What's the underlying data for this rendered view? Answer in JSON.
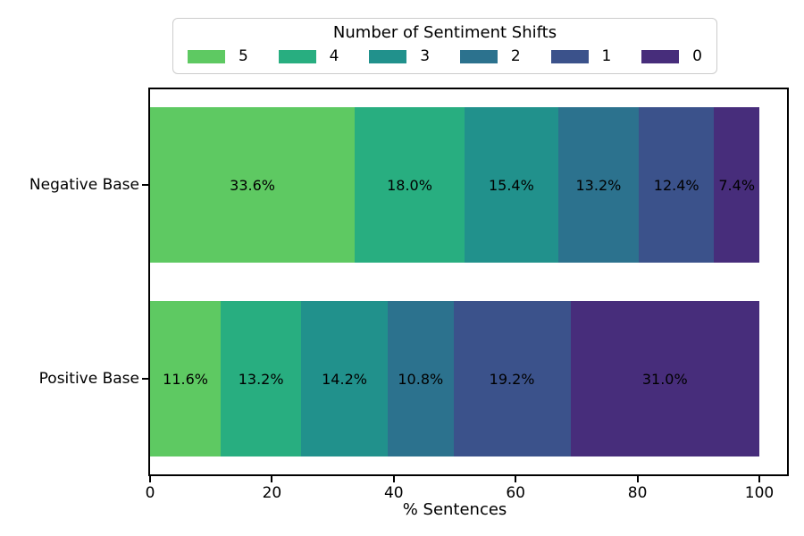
{
  "chart_data": {
    "type": "bar",
    "orientation": "horizontal",
    "stacked": true,
    "xlabel": "% Sentences",
    "ylabel": "",
    "xlim": [
      0,
      105
    ],
    "xticks": [
      "0",
      "20",
      "40",
      "60",
      "80",
      "100"
    ],
    "xtick_values": [
      0,
      20,
      40,
      60,
      80,
      100
    ],
    "categories": [
      "Negative Base",
      "Positive Base"
    ],
    "grid": false,
    "legend": {
      "title": "Number of Sentiment Shifts",
      "position": "top-center",
      "entries": [
        {
          "label": "5",
          "color": "#5ec962"
        },
        {
          "label": "4",
          "color": "#28ae80"
        },
        {
          "label": "3",
          "color": "#21918c"
        },
        {
          "label": "2",
          "color": "#2c728e"
        },
        {
          "label": "1",
          "color": "#3b528b"
        },
        {
          "label": "0",
          "color": "#472d7b"
        }
      ]
    },
    "series": [
      {
        "name": "5",
        "color": "#5ec962",
        "values": [
          33.6,
          11.6
        ]
      },
      {
        "name": "4",
        "color": "#28ae80",
        "values": [
          18.0,
          13.2
        ]
      },
      {
        "name": "3",
        "color": "#21918c",
        "values": [
          15.4,
          14.2
        ]
      },
      {
        "name": "2",
        "color": "#2c728e",
        "values": [
          13.2,
          10.8
        ]
      },
      {
        "name": "1",
        "color": "#3b528b",
        "values": [
          12.4,
          19.2
        ]
      },
      {
        "name": "0",
        "color": "#472d7b",
        "values": [
          7.4,
          31.0
        ]
      }
    ],
    "bar_labels": [
      [
        "33.6%",
        "18.0%",
        "15.4%",
        "13.2%",
        "12.4%",
        "7.4%"
      ],
      [
        "11.6%",
        "13.2%",
        "14.2%",
        "10.8%",
        "19.2%",
        "31.0%"
      ]
    ]
  }
}
